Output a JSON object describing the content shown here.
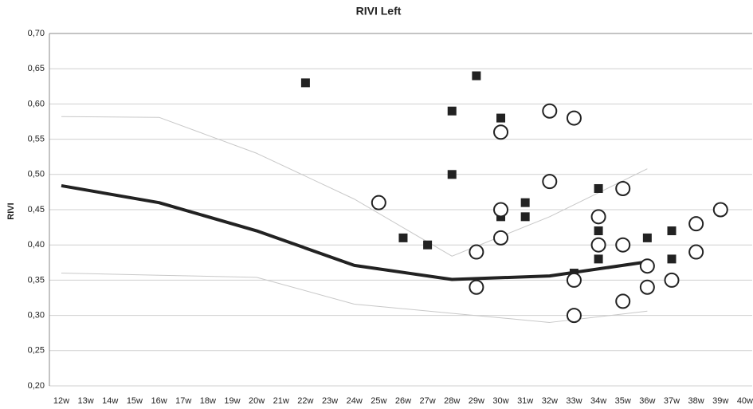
{
  "chart_data": {
    "type": "scatter",
    "title": "RIVI Left",
    "y_label": "RIVI",
    "categories": [
      "12w",
      "13w",
      "14w",
      "15w",
      "16w",
      "17w",
      "18w",
      "19w",
      "20w",
      "21w",
      "22w",
      "23w",
      "24w",
      "25w",
      "26w",
      "27w",
      "28w",
      "29w",
      "30w",
      "31w",
      "32w",
      "33w",
      "34w",
      "35w",
      "36w",
      "37w",
      "38w",
      "39w",
      "40w"
    ],
    "ylim": [
      0.2,
      0.7
    ],
    "yticks": [
      {
        "value": 0.2,
        "label": "0,20"
      },
      {
        "value": 0.25,
        "label": "0,25"
      },
      {
        "value": 0.3,
        "label": "0,30"
      },
      {
        "value": 0.35,
        "label": "0,35"
      },
      {
        "value": 0.4,
        "label": "0,40"
      },
      {
        "value": 0.45,
        "label": "0,45"
      },
      {
        "value": 0.5,
        "label": "0,50"
      },
      {
        "value": 0.55,
        "label": "0,55"
      },
      {
        "value": 0.6,
        "label": "0,60"
      },
      {
        "value": 0.65,
        "label": "0,65"
      },
      {
        "value": 0.7,
        "label": "0,70"
      }
    ],
    "grid": true,
    "series": [
      {
        "marker": "line",
        "color": "#c8c8c8",
        "line_width": 1,
        "x": [
          "12w",
          "16w",
          "20w",
          "24w",
          "28w",
          "32w",
          "36w"
        ],
        "values": [
          0.582,
          0.581,
          0.53,
          0.465,
          0.384,
          0.44,
          0.508
        ]
      },
      {
        "marker": "line",
        "color": "#c8c8c8",
        "line_width": 1,
        "x": [
          "12w",
          "16w",
          "20w",
          "24w",
          "28w",
          "32w",
          "36w"
        ],
        "values": [
          0.36,
          0.357,
          0.354,
          0.316,
          0.303,
          0.29,
          0.306
        ]
      },
      {
        "marker": "line",
        "color": "#222222",
        "line_width": 4,
        "x": [
          "12w",
          "16w",
          "20w",
          "24w",
          "28w",
          "32w",
          "36w"
        ],
        "values": [
          0.484,
          0.46,
          0.42,
          0.371,
          0.351,
          0.356,
          0.376
        ]
      },
      {
        "marker": "square",
        "color": "#222222",
        "x": [
          "22w",
          "26w",
          "27w",
          "28w",
          "28w",
          "29w",
          "30w",
          "30w",
          "31w",
          "31w",
          "33w",
          "34w",
          "34w",
          "34w",
          "36w",
          "37w",
          "37w"
        ],
        "values": [
          0.63,
          0.41,
          0.4,
          0.59,
          0.5,
          0.64,
          0.58,
          0.44,
          0.46,
          0.44,
          0.36,
          0.48,
          0.42,
          0.38,
          0.41,
          0.42,
          0.38
        ]
      },
      {
        "marker": "circle",
        "color": "#222222",
        "x": [
          "25w",
          "29w",
          "29w",
          "30w",
          "30w",
          "30w",
          "32w",
          "32w",
          "33w",
          "33w",
          "33w",
          "34w",
          "34w",
          "35w",
          "35w",
          "35w",
          "36w",
          "36w",
          "37w",
          "38w",
          "38w",
          "39w"
        ],
        "values": [
          0.46,
          0.39,
          0.34,
          0.56,
          0.45,
          0.41,
          0.59,
          0.49,
          0.58,
          0.35,
          0.3,
          0.44,
          0.4,
          0.48,
          0.4,
          0.32,
          0.37,
          0.34,
          0.35,
          0.43,
          0.39,
          0.45
        ]
      }
    ]
  }
}
